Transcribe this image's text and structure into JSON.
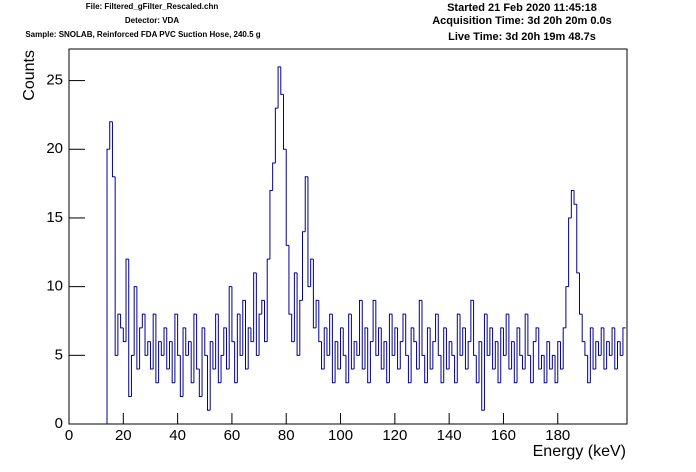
{
  "chart_data": {
    "type": "histogram",
    "header_left": [
      "File: Filtered_gFilter_Rescaled.chn",
      "Detector: VDA",
      "Sample: SNOLAB, Reinforced FDA PVC Suction Hose, 240.5 g"
    ],
    "header_right": [
      "Started 21 Feb 2020 11:45:18",
      "Acquisition Time: 3d 20h 20m 0.0s",
      "Live Time: 3d 20h 19m 48.7s"
    ],
    "x_label": "Energy (keV)",
    "y_label": "Counts",
    "color": "#000099",
    "xlim": [
      0,
      205.5
    ],
    "ylim": [
      0,
      27.3
    ],
    "xticks": [
      0,
      20,
      40,
      60,
      80,
      100,
      120,
      140,
      160,
      180
    ],
    "yticks": [
      0,
      5,
      10,
      15,
      20,
      25
    ],
    "bins": [
      0,
      1,
      2,
      3,
      4,
      5,
      6,
      7,
      8,
      9,
      10,
      11,
      12,
      13,
      14,
      15,
      16,
      17,
      18,
      19,
      20,
      21,
      22,
      23,
      24,
      25,
      26,
      27,
      28,
      29,
      30,
      31,
      32,
      33,
      34,
      35,
      36,
      37,
      38,
      39,
      40,
      41,
      42,
      43,
      44,
      45,
      46,
      47,
      48,
      49,
      50,
      51,
      52,
      53,
      54,
      55,
      56,
      57,
      58,
      59,
      60,
      61,
      62,
      63,
      64,
      65,
      66,
      67,
      68,
      69,
      70,
      71,
      72,
      73,
      74,
      75,
      76,
      77,
      78,
      79,
      80,
      81,
      82,
      83,
      84,
      85,
      86,
      87,
      88,
      89,
      90,
      91,
      92,
      93,
      94,
      95,
      96,
      97,
      98,
      99,
      100,
      101,
      102,
      103,
      104,
      105,
      106,
      107,
      108,
      109,
      110,
      111,
      112,
      113,
      114,
      115,
      116,
      117,
      118,
      119,
      120,
      121,
      122,
      123,
      124,
      125,
      126,
      127,
      128,
      129,
      130,
      131,
      132,
      133,
      134,
      135,
      136,
      137,
      138,
      139,
      140,
      141,
      142,
      143,
      144,
      145,
      146,
      147,
      148,
      149,
      150,
      151,
      152,
      153,
      154,
      155,
      156,
      157,
      158,
      159,
      160,
      161,
      162,
      163,
      164,
      165,
      166,
      167,
      168,
      169,
      170,
      171,
      172,
      173,
      174,
      175,
      176,
      177,
      178,
      179,
      180,
      181,
      182,
      183,
      184,
      185,
      186,
      187,
      188,
      189,
      190,
      191,
      192,
      193,
      194,
      195,
      196,
      197,
      198,
      199,
      200,
      201,
      202,
      203,
      204,
      205
    ],
    "values": [
      0,
      0,
      0,
      0,
      0,
      0,
      0,
      0,
      0,
      0,
      0,
      0,
      0,
      0,
      20,
      22,
      18,
      5,
      8,
      7,
      6,
      12,
      2,
      5,
      10,
      4,
      7,
      8,
      5,
      6,
      4,
      8,
      3,
      6,
      5,
      7,
      4,
      6,
      3,
      8,
      5,
      2,
      7,
      5,
      6,
      3,
      8,
      4,
      2,
      7,
      5,
      1,
      6,
      4,
      8,
      3,
      5,
      7,
      4,
      10,
      6,
      3,
      8,
      5,
      9,
      4,
      7,
      6,
      11,
      5,
      8,
      9,
      6,
      12,
      17,
      19,
      23,
      26,
      24,
      20,
      13,
      8,
      6,
      11,
      5,
      9,
      14,
      18,
      10,
      12,
      7,
      9,
      6,
      4,
      7,
      5,
      8,
      3,
      6,
      4,
      7,
      5,
      3,
      8,
      4,
      6,
      5,
      9,
      4,
      7,
      3,
      6,
      9,
      5,
      7,
      4,
      6,
      3,
      8,
      5,
      7,
      4,
      6,
      8,
      5,
      3,
      7,
      6,
      4,
      9,
      5,
      3,
      7,
      4,
      6,
      8,
      5,
      3,
      7,
      4,
      6,
      5,
      3,
      8,
      5,
      7,
      4,
      6,
      9,
      5,
      3,
      6,
      1,
      8,
      5,
      7,
      4,
      6,
      3,
      7,
      5,
      8,
      4,
      6,
      3,
      7,
      5,
      4,
      8,
      5,
      3,
      6,
      7,
      4,
      5,
      3,
      6,
      4,
      5,
      3,
      6,
      4,
      7,
      10,
      15,
      17,
      16,
      11,
      8,
      6,
      5,
      3,
      7,
      4,
      6,
      5,
      7,
      4,
      6,
      5,
      7,
      4,
      6,
      5,
      7
    ]
  }
}
